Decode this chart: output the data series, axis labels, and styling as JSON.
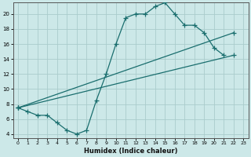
{
  "xlabel": "Humidex (Indice chaleur)",
  "bg_color": "#cce8e8",
  "line_color": "#1a6e6e",
  "grid_color": "#aacccc",
  "xlim": [
    -0.5,
    23.5
  ],
  "ylim": [
    3.5,
    21.5
  ],
  "xticks": [
    0,
    1,
    2,
    3,
    4,
    5,
    6,
    7,
    8,
    9,
    10,
    11,
    12,
    13,
    14,
    15,
    16,
    17,
    18,
    19,
    20,
    21,
    22,
    23
  ],
  "yticks": [
    4,
    6,
    8,
    10,
    12,
    14,
    16,
    18,
    20
  ],
  "line1_x": [
    0,
    1,
    2,
    3,
    4,
    5,
    6,
    7,
    8,
    9,
    10,
    11,
    12,
    13,
    14,
    15,
    16,
    17,
    18,
    19,
    20,
    21
  ],
  "line1_y": [
    7.5,
    7.0,
    6.5,
    6.5,
    5.5,
    4.5,
    4.0,
    4.5,
    8.5,
    12.0,
    16.0,
    19.5,
    20.0,
    20.0,
    21.0,
    21.5,
    20.0,
    18.5,
    18.5,
    17.5,
    15.5,
    14.5
  ],
  "line2_x": [
    0,
    22
  ],
  "line2_y": [
    7.5,
    14.5
  ],
  "line3_x": [
    0,
    22
  ],
  "line3_y": [
    7.5,
    17.5
  ]
}
